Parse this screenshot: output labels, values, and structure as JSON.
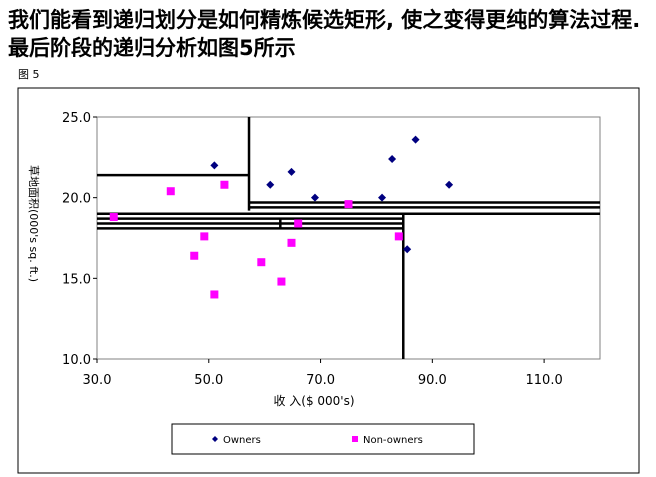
{
  "heading": "我们能看到递归划分是如何精炼候选矩形, 使之变得更纯的算法过程. 最后阶段的递归分析如图5所示",
  "figure_label": "图 5",
  "chart_data": {
    "type": "scatter",
    "xlabel": "收 入($ 000's)",
    "ylabel": "草地面积(000's sq. ft.)",
    "xlim": [
      30,
      120
    ],
    "ylim": [
      10,
      25
    ],
    "x_ticks": [
      "30.0",
      "50.0",
      "70.0",
      "90.0",
      "110.0"
    ],
    "y_ticks": [
      "10.0",
      "15.0",
      "20.0",
      "25.0"
    ],
    "legend_position": "bottom",
    "series": [
      {
        "name": "Owners",
        "marker": "diamond",
        "color": "#000080",
        "points": [
          [
            51.0,
            22.0
          ],
          [
            61.0,
            20.8
          ],
          [
            64.8,
            21.6
          ],
          [
            69.0,
            20.0
          ],
          [
            81.0,
            20.0
          ],
          [
            82.8,
            22.4
          ],
          [
            87.0,
            23.6
          ],
          [
            93.0,
            20.8
          ],
          [
            85.5,
            16.8
          ]
        ]
      },
      {
        "name": "Non-owners",
        "marker": "square",
        "color": "#ff00ff",
        "points": [
          [
            43.2,
            20.4
          ],
          [
            52.8,
            20.8
          ],
          [
            49.2,
            17.6
          ],
          [
            47.4,
            16.4
          ],
          [
            51.0,
            14.0
          ],
          [
            59.4,
            16.0
          ],
          [
            63.0,
            14.8
          ],
          [
            64.8,
            17.2
          ],
          [
            66.0,
            18.4
          ],
          [
            75.0,
            19.6
          ],
          [
            84.0,
            17.6
          ],
          [
            33.0,
            18.8
          ]
        ]
      }
    ],
    "split_lines": [
      {
        "orientation": "vertical",
        "x": 57.2,
        "y_range": [
          19.2,
          25
        ]
      },
      {
        "orientation": "horizontal",
        "y": 21.4,
        "x_range": [
          30,
          57.2
        ]
      },
      {
        "orientation": "horizontal",
        "y": 19.7,
        "x_range": [
          57.2,
          120
        ]
      },
      {
        "orientation": "horizontal",
        "y": 19.4,
        "x_range": [
          57.2,
          120
        ]
      },
      {
        "orientation": "horizontal",
        "y": 19.0,
        "x_range": [
          30,
          120
        ]
      },
      {
        "orientation": "horizontal",
        "y": 18.7,
        "x_range": [
          30,
          84.8
        ]
      },
      {
        "orientation": "horizontal",
        "y": 18.4,
        "x_range": [
          30,
          84.8
        ]
      },
      {
        "orientation": "horizontal",
        "y": 18.1,
        "x_range": [
          30,
          84.8
        ]
      },
      {
        "orientation": "vertical",
        "x": 84.8,
        "y_range": [
          10,
          19.0
        ]
      },
      {
        "orientation": "vertical",
        "x": 62.8,
        "y_range": [
          18.1,
          18.7
        ]
      }
    ]
  }
}
